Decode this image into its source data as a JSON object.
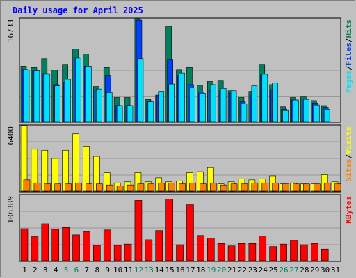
{
  "colors": {
    "background": "#c0c0c0",
    "panel": "#c0c0c0",
    "grid": "#999999",
    "title_text": "#0000ff",
    "hits": "#00805c",
    "files": "#0040ff",
    "pages": "#00e0ff",
    "visits": "#ffff00",
    "sites": "#ff8000",
    "kbytes": "#ff0000",
    "weekend_label": "#00805c",
    "separator": "#000000"
  },
  "chart_data": [
    {
      "type": "bar",
      "title": "Daily usage for April 2025",
      "ymax_label": "16733",
      "ylim": [
        0,
        16733
      ],
      "legend": [
        {
          "name": "Pages",
          "color": "#00e0ff"
        },
        {
          "name": "/",
          "color": "#000000"
        },
        {
          "name": "Files",
          "color": "#0040ff"
        },
        {
          "name": "/",
          "color": "#000000"
        },
        {
          "name": "Hits",
          "color": "#00805c"
        }
      ],
      "categories": [
        "1",
        "2",
        "3",
        "4",
        "5",
        "6",
        "7",
        "8",
        "9",
        "10",
        "11",
        "12",
        "13",
        "14",
        "15",
        "16",
        "17",
        "18",
        "19",
        "20",
        "21",
        "22",
        "23",
        "24",
        "25",
        "26",
        "27",
        "28",
        "29",
        "30",
        "31"
      ],
      "series": [
        {
          "name": "Hits",
          "values": [
            9000,
            8800,
            10200,
            8400,
            9300,
            11800,
            11000,
            5700,
            8800,
            3900,
            3900,
            16733,
            3600,
            4400,
            15500,
            8500,
            8800,
            5900,
            6500,
            6700,
            5000,
            3900,
            4900,
            9300,
            6000,
            2400,
            3900,
            4100,
            3400,
            2600,
            null
          ]
        },
        {
          "name": "Files",
          "values": [
            8500,
            8400,
            7800,
            6000,
            6400,
            10400,
            9000,
            5100,
            7500,
            2600,
            2600,
            16500,
            3200,
            4300,
            10100,
            7500,
            6000,
            4800,
            5000,
            5000,
            4600,
            3200,
            4400,
            7600,
            5200,
            2000,
            3500,
            3300,
            3000,
            2300,
            null
          ]
        },
        {
          "name": "Pages",
          "values": [
            8400,
            8300,
            7700,
            5800,
            6900,
            10300,
            9000,
            5300,
            4700,
            2600,
            2600,
            10200,
            3200,
            4900,
            6100,
            7900,
            5500,
            4600,
            6000,
            5400,
            5000,
            2900,
            5800,
            7700,
            6300,
            1900,
            3500,
            3600,
            2700,
            2000,
            null
          ]
        }
      ]
    },
    {
      "type": "bar",
      "ymax_label": "6400",
      "ylim": [
        0,
        6400
      ],
      "legend": [
        {
          "name": "Sites",
          "color": "#ff8000"
        },
        {
          "name": "/",
          "color": "#000000"
        },
        {
          "name": "Visits",
          "color": "#ffff00"
        }
      ],
      "categories": [
        "1",
        "2",
        "3",
        "4",
        "5",
        "6",
        "7",
        "8",
        "9",
        "10",
        "11",
        "12",
        "13",
        "14",
        "15",
        "16",
        "17",
        "18",
        "19",
        "20",
        "21",
        "22",
        "23",
        "24",
        "25",
        "26",
        "27",
        "28",
        "29",
        "30",
        "31"
      ],
      "series": [
        {
          "name": "Visits",
          "values": [
            6400,
            4100,
            4000,
            3200,
            4000,
            5600,
            4400,
            3400,
            1800,
            800,
            900,
            1800,
            900,
            1300,
            900,
            1000,
            1800,
            1900,
            2300,
            700,
            900,
            1200,
            1100,
            1200,
            1500,
            700,
            800,
            700,
            700,
            1600,
            900
          ]
        },
        {
          "name": "Sites",
          "values": [
            1100,
            800,
            700,
            700,
            700,
            800,
            700,
            700,
            600,
            500,
            600,
            700,
            700,
            800,
            800,
            700,
            800,
            700,
            800,
            600,
            700,
            700,
            800,
            800,
            800,
            700,
            700,
            700,
            700,
            800,
            700
          ]
        }
      ]
    },
    {
      "type": "bar",
      "ymax_label": "106389",
      "ylim": [
        0,
        106389
      ],
      "legend": [
        {
          "name": "KBytes",
          "color": "#ff0000"
        }
      ],
      "categories": [
        "1",
        "2",
        "3",
        "4",
        "5",
        "6",
        "7",
        "8",
        "9",
        "10",
        "11",
        "12",
        "13",
        "14",
        "15",
        "16",
        "17",
        "18",
        "19",
        "20",
        "21",
        "22",
        "23",
        "24",
        "25",
        "26",
        "27",
        "28",
        "29",
        "30",
        "31"
      ],
      "series": [
        {
          "name": "KBytes",
          "values": [
            52000,
            39000,
            60000,
            51000,
            54000,
            42000,
            47000,
            25000,
            50000,
            25000,
            27000,
            98000,
            34000,
            49000,
            100000,
            26000,
            91000,
            41000,
            37000,
            28000,
            24000,
            28000,
            28000,
            40000,
            23000,
            27000,
            33000,
            26000,
            28000,
            19000,
            null
          ]
        }
      ]
    }
  ],
  "weekend_days": [
    "5",
    "6",
    "12",
    "13",
    "19",
    "20",
    "26",
    "27"
  ]
}
